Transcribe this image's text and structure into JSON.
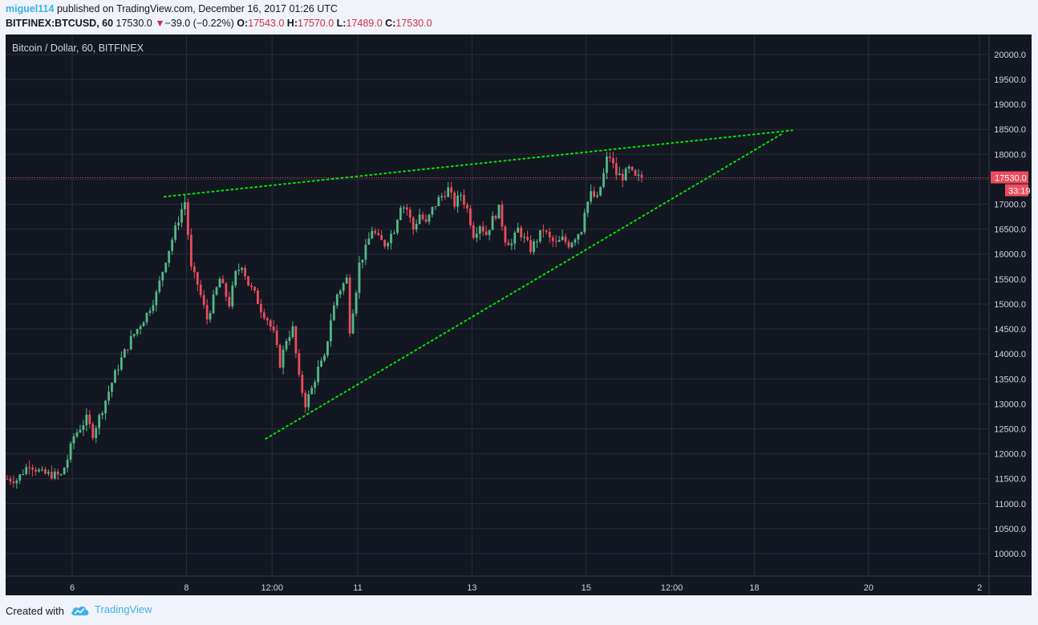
{
  "header": {
    "username": "miguel114",
    "published_text": "published on TradingView.com, December 16, 2017 01:26 UTC",
    "symbol": "BITFINEX:BTCUSD, 60",
    "last_price": "17530.0",
    "change": "−39.0 (−0.22%)",
    "open_label": "O:",
    "open_value": "17543.0",
    "high_label": "H:",
    "high_value": "17570.0",
    "low_label": "L:",
    "low_value": "17489.0",
    "close_label": "C:",
    "close_value": "17530.0"
  },
  "chart": {
    "title": "Bitcoin / Dollar, 60, BITFINEX",
    "price_badge": "17530.0",
    "countdown_badge": "33:19"
  },
  "footer": {
    "created_with": "Created with",
    "brand": "TradingView"
  },
  "colors": {
    "background": "#131722",
    "grid": "#2a2e39",
    "up": "#53b987",
    "down": "#eb4d5c",
    "trendline": "#00e600",
    "price_line": "#eb4d5c",
    "brand": "#3bb3e4"
  },
  "chart_data": {
    "type": "candlestick",
    "title": "Bitcoin / Dollar, 60, BITFINEX",
    "interval": "60",
    "y_ticks": [
      10000,
      10500,
      11000,
      11500,
      12000,
      12500,
      13000,
      13500,
      14000,
      14500,
      15000,
      15500,
      16000,
      16500,
      17000,
      17500,
      18000,
      18500,
      19000,
      19500,
      20000
    ],
    "ylim": [
      9550,
      20400
    ],
    "x_tick_labels": [
      {
        "t": 21,
        "label": "6"
      },
      {
        "t": 57,
        "label": "8"
      },
      {
        "t": 84,
        "label": "12:00"
      },
      {
        "t": 111,
        "label": "11"
      },
      {
        "t": 147,
        "label": "13"
      },
      {
        "t": 183,
        "label": "15"
      },
      {
        "t": 210,
        "label": "12:00"
      },
      {
        "t": 236,
        "label": "18"
      },
      {
        "t": 272,
        "label": "20"
      },
      {
        "t": 307,
        "label": "2"
      }
    ],
    "xlim": [
      0,
      310
    ],
    "current_price": 17530.0,
    "grid": true,
    "anchors": [
      [
        0,
        11500
      ],
      [
        4,
        11480
      ],
      [
        8,
        11800
      ],
      [
        12,
        11600
      ],
      [
        18,
        11560
      ],
      [
        20,
        11900
      ],
      [
        22,
        12350
      ],
      [
        26,
        12700
      ],
      [
        28,
        12400
      ],
      [
        31,
        12900
      ],
      [
        35,
        13600
      ],
      [
        37,
        13900
      ],
      [
        40,
        14300
      ],
      [
        45,
        14800
      ],
      [
        48,
        15200
      ],
      [
        51,
        15900
      ],
      [
        54,
        16500
      ],
      [
        56,
        16900
      ],
      [
        57,
        17050
      ],
      [
        58,
        16400
      ],
      [
        59,
        15700
      ],
      [
        61,
        15400
      ],
      [
        64,
        14700
      ],
      [
        66,
        15100
      ],
      [
        68,
        15500
      ],
      [
        71,
        15000
      ],
      [
        73,
        15600
      ],
      [
        75,
        15800
      ],
      [
        77,
        15400
      ],
      [
        79,
        15200
      ],
      [
        81,
        14900
      ],
      [
        83,
        14700
      ],
      [
        85,
        14400
      ],
      [
        87,
        13800
      ],
      [
        89,
        14300
      ],
      [
        91,
        14500
      ],
      [
        93,
        13500
      ],
      [
        95,
        13000
      ],
      [
        97,
        13300
      ],
      [
        99,
        13700
      ],
      [
        101,
        13900
      ],
      [
        103,
        14700
      ],
      [
        105,
        15200
      ],
      [
        107,
        15400
      ],
      [
        108,
        15500
      ],
      [
        109,
        14500
      ],
      [
        111,
        15300
      ],
      [
        112,
        15800
      ],
      [
        114,
        16100
      ],
      [
        116,
        16500
      ],
      [
        118,
        16300
      ],
      [
        120,
        16200
      ],
      [
        123,
        16500
      ],
      [
        125,
        17000
      ],
      [
        127,
        16900
      ],
      [
        129,
        16500
      ],
      [
        131,
        16800
      ],
      [
        133,
        16600
      ],
      [
        135,
        16900
      ],
      [
        137,
        17100
      ],
      [
        140,
        17300
      ],
      [
        142,
        17000
      ],
      [
        144,
        17200
      ],
      [
        146,
        16900
      ],
      [
        148,
        16400
      ],
      [
        150,
        16600
      ],
      [
        152,
        16400
      ],
      [
        154,
        16700
      ],
      [
        156,
        16900
      ],
      [
        158,
        16300
      ],
      [
        160,
        16200
      ],
      [
        162,
        16500
      ],
      [
        164,
        16300
      ],
      [
        166,
        16100
      ],
      [
        168,
        16300
      ],
      [
        170,
        16500
      ],
      [
        172,
        16300
      ],
      [
        174,
        16200
      ],
      [
        176,
        16300
      ],
      [
        178,
        16200
      ],
      [
        180,
        16350
      ],
      [
        182,
        16500
      ],
      [
        183,
        16900
      ],
      [
        185,
        17200
      ],
      [
        187,
        17100
      ],
      [
        189,
        17600
      ],
      [
        190,
        17900
      ],
      [
        191,
        17950
      ],
      [
        193,
        17600
      ],
      [
        195,
        17550
      ],
      [
        197,
        17700
      ],
      [
        199,
        17520
      ],
      [
        200,
        17530
      ]
    ],
    "trendlines": [
      {
        "name": "upper",
        "from": [
          50,
          17150
        ],
        "to": [
          248,
          18480
        ]
      },
      {
        "name": "lower",
        "from": [
          82,
          12300
        ],
        "to": [
          245,
          18420
        ]
      }
    ]
  }
}
